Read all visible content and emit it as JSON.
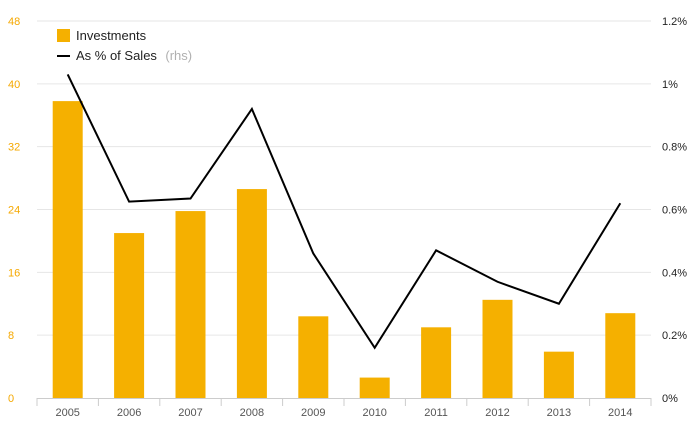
{
  "chart_data": {
    "type": "bar",
    "categories": [
      "2005",
      "2006",
      "2007",
      "2008",
      "2009",
      "2010",
      "2011",
      "2012",
      "2013",
      "2014"
    ],
    "series": [
      {
        "name": "Investments",
        "type": "bar",
        "axis": "left",
        "color": "#f5b000",
        "values": [
          37.8,
          21.0,
          23.8,
          26.6,
          10.4,
          2.6,
          9.0,
          12.5,
          5.9,
          10.8
        ]
      },
      {
        "name": "As % of Sales",
        "name_suffix": "(rhs)",
        "type": "line",
        "axis": "right",
        "color": "#000000",
        "values": [
          1.03,
          0.625,
          0.635,
          0.92,
          0.46,
          0.16,
          0.47,
          0.37,
          0.3,
          0.62
        ]
      }
    ],
    "left_axis": {
      "ylim": [
        0,
        48
      ],
      "ticks": [
        0,
        8,
        16,
        24,
        32,
        40,
        48
      ],
      "tick_labels": [
        "0",
        "8",
        "16",
        "24",
        "32",
        "40",
        "48"
      ],
      "color": "#f5a800"
    },
    "right_axis": {
      "ylim": [
        0,
        1.2
      ],
      "ticks": [
        0,
        0.2,
        0.4,
        0.6,
        0.8,
        1.0,
        1.2
      ],
      "tick_labels": [
        "0%",
        "0.2%",
        "0.4%",
        "0.6%",
        "0.8%",
        "1%",
        "1.2%"
      ]
    },
    "grid": true,
    "legend_position": "top-left",
    "title": "",
    "xlabel": "",
    "ylabel": ""
  }
}
